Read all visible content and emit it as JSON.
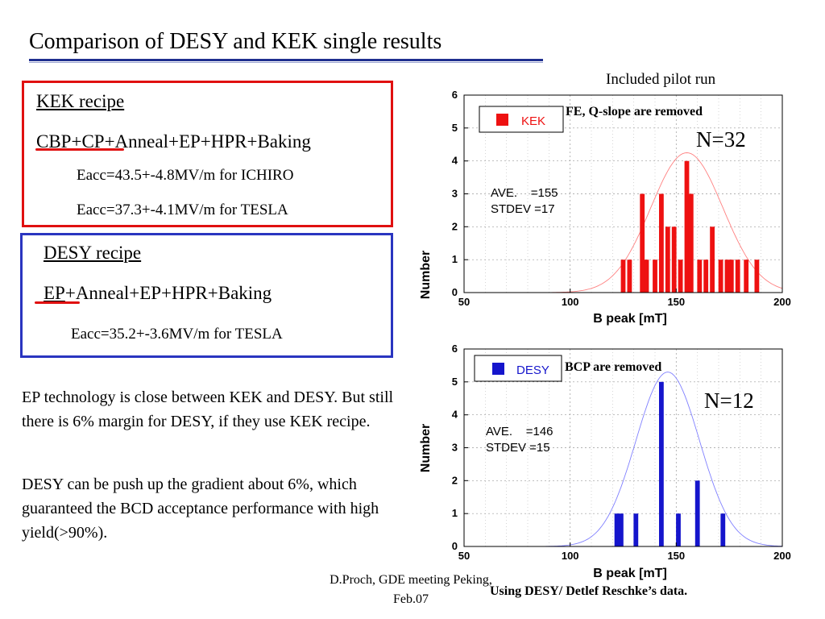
{
  "title": "Comparison of DESY and KEK single results",
  "kek": {
    "heading": "KEK recipe",
    "recipe_underlined": "CBP+CP",
    "recipe_rest": "+Anneal+EP+HPR+Baking",
    "line1": "Eacc=43.5+-4.8MV/m for ICHIRO",
    "line2": "Eacc=37.3+-4.1MV/m for TESLA"
  },
  "desy": {
    "heading": "DESY recipe",
    "recipe_underlined": "EP",
    "recipe_rest": "+Anneal+EP+HPR+Baking",
    "line1": "Eacc=35.2+-3.6MV/m for TESLA"
  },
  "paragraphs": [
    "EP technology is close between KEK and DESY. But still there is 6% margin for DESY, if they use KEK recipe.",
    "DESY can be push up the gradient about 6%, which guaranteed the BCD acceptance performance with high yield(>90%)."
  ],
  "footer": {
    "line1": "D.Proch, GDE meeting Peking,",
    "line2": "Feb.07"
  },
  "source_note": "Using DESY/ Detlef Reschke’s data.",
  "pilot_note": "Included pilot run",
  "colors": {
    "kek": "#ee1111",
    "desy": "#1515cc",
    "kek_fit": "#ff8080",
    "desy_fit": "#8080ff",
    "title_rule": "#1f2f8f"
  },
  "chart_data": [
    {
      "type": "bar",
      "legend": "KEK",
      "annotation": "FE, Q-slope are removed",
      "n_label": "N=32",
      "stats": [
        "AVE.    =155",
        "STDEV =17"
      ],
      "xlabel": "B peak [mT]",
      "ylabel": "Number",
      "xlim": [
        50,
        200
      ],
      "ylim": [
        0,
        6
      ],
      "xticks": [
        50,
        100,
        150,
        200
      ],
      "yticks": [
        0,
        1,
        2,
        3,
        4,
        5,
        6
      ],
      "color": "#ee1111",
      "fit_color": "#ff8080",
      "fit": {
        "mean": 155,
        "sigma": 17,
        "peak": 4.25
      },
      "x": [
        125,
        128,
        134,
        136,
        140,
        143,
        146,
        149,
        152,
        155,
        157,
        161,
        164,
        167,
        171,
        174,
        176,
        179,
        183,
        188
      ],
      "values": [
        1,
        1,
        3,
        1,
        1,
        3,
        2,
        2,
        1,
        4,
        3,
        1,
        1,
        2,
        1,
        1,
        1,
        1,
        1,
        1
      ]
    },
    {
      "type": "bar",
      "legend": "DESY",
      "annotation": "BCP are removed",
      "n_label": "N=12",
      "stats": [
        "AVE.    =146",
        "STDEV =15"
      ],
      "xlabel": "B peak [mT]",
      "ylabel": "Number",
      "xlim": [
        50,
        200
      ],
      "ylim": [
        0,
        6
      ],
      "xticks": [
        50,
        100,
        150,
        200
      ],
      "yticks": [
        0,
        1,
        2,
        3,
        4,
        5,
        6
      ],
      "color": "#1515cc",
      "fit_color": "#8080ff",
      "fit": {
        "mean": 146,
        "sigma": 15,
        "peak": 5.3
      },
      "x": [
        122,
        124,
        131,
        143,
        151,
        160,
        172
      ],
      "values": [
        1,
        1,
        1,
        5,
        1,
        2,
        1
      ]
    }
  ]
}
